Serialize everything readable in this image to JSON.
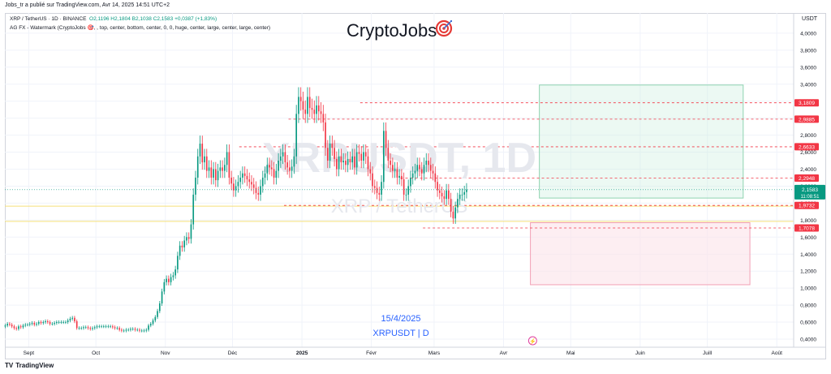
{
  "header": {
    "publisher_line": "Jobs_tr a publié sur TradingView.com, Avr 14, 2025 14:51 UTC+2"
  },
  "legend": {
    "symbol_line": "XRP / TetherUS · 1D · BINANCE",
    "ohlc": "O2,1196 H2,1804 B2,1038 C2,1583 +0,0387 (+1,83%)",
    "indicator_line": "AG FX - Watermark (CryptoJobs 🎯, , top, center, bottom, center, 0, 0, huge, center, large, center, large, center)"
  },
  "brand": {
    "name": "CryptoJobs",
    "icon": "target-icon"
  },
  "watermark": {
    "symbol": "XRPUSDT, 1D",
    "pair": "XRP / TetherUS",
    "date": "15/4/2025",
    "ticker": "XRPUSDT | D"
  },
  "footer": {
    "logo": "TV",
    "label": "TradingView"
  },
  "colors": {
    "up": "#089981",
    "down": "#f23645",
    "green_zone": "#c8eedd",
    "red_zone": "#fbe3ea",
    "yellow_line": "#f5e07a",
    "label_red": "#f23645",
    "label_green": "#089981"
  },
  "chart_data": {
    "type": "candlestick",
    "currency": "USDT",
    "x_tick_labels": [
      "Sept",
      "Oct",
      "Nov",
      "Déc",
      "2025",
      "Févr",
      "Mars",
      "Avr",
      "Mai",
      "Juin",
      "Juill",
      "Août"
    ],
    "y_tick_labels": [
      "0,4000",
      "0,6000",
      "0,8000",
      "1,0000",
      "1,2000",
      "1,4000",
      "1,6000",
      "1,8000",
      "2,0000",
      "2,2000",
      "2,4000",
      "2,6000",
      "2,8000",
      "3,0000",
      "3,2000",
      "3,4000",
      "3,6000",
      "3,8000",
      "4,0000"
    ],
    "ylim": [
      0.38,
      4.18
    ],
    "price_levels": [
      {
        "value": "3,1809",
        "kind": "red"
      },
      {
        "value": "2,9885",
        "kind": "red"
      },
      {
        "value": "2,6633",
        "kind": "red"
      },
      {
        "value": "2,2948",
        "kind": "red"
      },
      {
        "value": "1,9732",
        "kind": "red"
      },
      {
        "value": "1,7078",
        "kind": "red"
      }
    ],
    "last_price": {
      "value": "2,1583",
      "countdown": "11:08:51"
    },
    "yellow_lines": [
      1.965,
      1.785
    ],
    "green_zone": {
      "start": "2025-04-17",
      "end": "2025-07-17",
      "bottom": 2.06,
      "top": 3.39
    },
    "red_zone": {
      "start": "2025-04-13",
      "end": "2025-07-20",
      "bottom": 1.04,
      "top": 1.77
    },
    "lightning_marker_date": "2025-04-14",
    "closes": [
      0.56,
      0.58,
      0.57,
      0.55,
      0.53,
      0.52,
      0.55,
      0.54,
      0.56,
      0.57,
      0.57,
      0.58,
      0.59,
      0.57,
      0.58,
      0.6,
      0.59,
      0.6,
      0.61,
      0.6,
      0.58,
      0.58,
      0.59,
      0.6,
      0.6,
      0.6,
      0.6,
      0.6,
      0.62,
      0.64,
      0.65,
      0.61,
      0.53,
      0.53,
      0.53,
      0.54,
      0.54,
      0.53,
      0.52,
      0.53,
      0.54,
      0.55,
      0.55,
      0.55,
      0.55,
      0.55,
      0.55,
      0.55,
      0.54,
      0.53,
      0.53,
      0.51,
      0.5,
      0.5,
      0.51,
      0.51,
      0.52,
      0.52,
      0.51,
      0.51,
      0.5,
      0.5,
      0.5,
      0.51,
      0.56,
      0.58,
      0.62,
      0.66,
      0.73,
      0.82,
      0.96,
      1.07,
      1.11,
      1.07,
      1.13,
      1.15,
      1.22,
      1.38,
      1.5,
      1.48,
      1.56,
      1.6,
      1.58,
      1.75,
      2.1,
      2.3,
      2.55,
      2.7,
      2.48,
      2.55,
      2.38,
      2.42,
      2.3,
      2.4,
      2.27,
      2.38,
      2.42,
      2.38,
      2.45,
      2.6,
      2.3,
      2.23,
      2.15,
      2.2,
      2.25,
      2.3,
      2.35,
      2.32,
      2.28,
      2.25,
      2.22,
      2.18,
      2.12,
      2.1,
      2.2,
      2.3,
      2.35,
      2.45,
      2.42,
      2.4,
      2.3,
      2.38,
      2.5,
      2.55,
      2.6,
      2.48,
      2.42,
      2.38,
      2.43,
      2.55,
      3.05,
      3.25,
      3.2,
      3.1,
      3.05,
      3.25,
      3.12,
      3.1,
      3.05,
      3.15,
      3.08,
      3.05,
      2.95,
      2.65,
      2.5,
      2.7,
      2.65,
      2.52,
      2.4,
      2.55,
      2.48,
      2.5,
      2.45,
      2.52,
      2.48,
      2.55,
      2.42,
      2.6,
      2.58,
      2.5,
      2.6,
      2.55,
      2.4,
      2.35,
      2.2,
      2.18,
      2.12,
      2.1,
      2.25,
      2.85,
      2.65,
      2.5,
      2.45,
      2.38,
      2.4,
      2.3,
      2.32,
      2.28,
      2.1,
      2.1,
      2.2,
      2.3,
      2.35,
      2.38,
      2.45,
      2.4,
      2.35,
      2.45,
      2.5,
      2.45,
      2.38,
      2.35,
      2.25,
      2.15,
      2.12,
      2.08,
      2.05,
      2.15,
      2.05,
      1.9,
      1.82,
      1.95,
      2.05,
      2.1,
      2.1,
      2.13,
      2.16
    ]
  }
}
